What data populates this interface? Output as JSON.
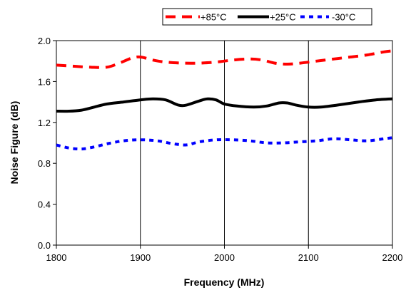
{
  "chart_data": {
    "type": "line",
    "title": "",
    "xlabel": "Frequency (MHz)",
    "ylabel": "Noise Figure (dB)",
    "xlim": [
      1800,
      2200
    ],
    "ylim": [
      0.0,
      2.0
    ],
    "x_ticks": [
      "1800",
      "1900",
      "2000",
      "2100",
      "2200"
    ],
    "y_ticks": [
      "0.0",
      "0.4",
      "0.8",
      "1.2",
      "1.6",
      "2.0"
    ],
    "grid": "vertical",
    "legend_position": "top",
    "series": [
      {
        "name": "+85°C",
        "color": "#ff0000",
        "style": "dashed",
        "points": [
          [
            1800,
            1.76
          ],
          [
            1820,
            1.75
          ],
          [
            1840,
            1.74
          ],
          [
            1860,
            1.74
          ],
          [
            1875,
            1.78
          ],
          [
            1890,
            1.83
          ],
          [
            1900,
            1.84
          ],
          [
            1915,
            1.81
          ],
          [
            1930,
            1.79
          ],
          [
            1950,
            1.78
          ],
          [
            1970,
            1.78
          ],
          [
            1990,
            1.79
          ],
          [
            2010,
            1.81
          ],
          [
            2030,
            1.82
          ],
          [
            2045,
            1.81
          ],
          [
            2060,
            1.78
          ],
          [
            2075,
            1.77
          ],
          [
            2090,
            1.78
          ],
          [
            2110,
            1.8
          ],
          [
            2130,
            1.82
          ],
          [
            2150,
            1.84
          ],
          [
            2170,
            1.86
          ],
          [
            2190,
            1.89
          ],
          [
            2200,
            1.9
          ]
        ]
      },
      {
        "name": "+25°C",
        "color": "#000000",
        "style": "solid",
        "points": [
          [
            1800,
            1.31
          ],
          [
            1815,
            1.31
          ],
          [
            1830,
            1.32
          ],
          [
            1845,
            1.35
          ],
          [
            1860,
            1.38
          ],
          [
            1880,
            1.4
          ],
          [
            1900,
            1.42
          ],
          [
            1915,
            1.43
          ],
          [
            1930,
            1.42
          ],
          [
            1945,
            1.37
          ],
          [
            1955,
            1.37
          ],
          [
            1970,
            1.41
          ],
          [
            1980,
            1.43
          ],
          [
            1990,
            1.42
          ],
          [
            2000,
            1.38
          ],
          [
            2015,
            1.36
          ],
          [
            2035,
            1.35
          ],
          [
            2050,
            1.36
          ],
          [
            2065,
            1.39
          ],
          [
            2075,
            1.39
          ],
          [
            2085,
            1.37
          ],
          [
            2100,
            1.35
          ],
          [
            2115,
            1.35
          ],
          [
            2135,
            1.37
          ],
          [
            2160,
            1.4
          ],
          [
            2180,
            1.42
          ],
          [
            2200,
            1.43
          ]
        ]
      },
      {
        "name": "-30°C",
        "color": "#0000ff",
        "style": "dotted",
        "points": [
          [
            1800,
            0.98
          ],
          [
            1815,
            0.95
          ],
          [
            1830,
            0.94
          ],
          [
            1845,
            0.96
          ],
          [
            1860,
            0.99
          ],
          [
            1880,
            1.02
          ],
          [
            1900,
            1.03
          ],
          [
            1920,
            1.02
          ],
          [
            1940,
            0.99
          ],
          [
            1955,
            0.98
          ],
          [
            1970,
            1.01
          ],
          [
            1990,
            1.03
          ],
          [
            2010,
            1.03
          ],
          [
            2030,
            1.02
          ],
          [
            2050,
            1.0
          ],
          [
            2070,
            1.0
          ],
          [
            2090,
            1.01
          ],
          [
            2110,
            1.02
          ],
          [
            2130,
            1.04
          ],
          [
            2150,
            1.03
          ],
          [
            2170,
            1.02
          ],
          [
            2190,
            1.04
          ],
          [
            2200,
            1.05
          ]
        ]
      }
    ]
  }
}
